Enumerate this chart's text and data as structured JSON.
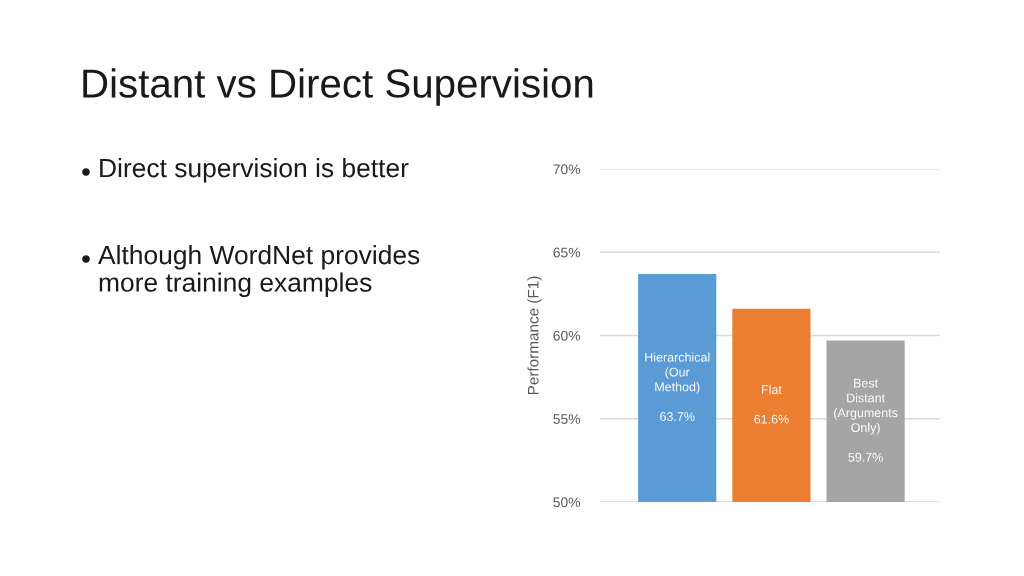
{
  "chart_data": {
    "type": "bar",
    "title": "Distant vs Direct Supervision",
    "ylabel": "Performance (F1)",
    "annotations": [
      "Direct supervision is better",
      "Although WordNet provides more training examples"
    ],
    "categories": [
      "Hierarchical (Our Method)",
      "Flat",
      "Best Distant (Arguments Only)"
    ],
    "values": [
      63.7,
      61.6,
      59.7
    ],
    "colors": [
      "#5b9bd5",
      "#ed7d31",
      "#a5a5a5"
    ],
    "value_labels": [
      "63.7%",
      "61.6%",
      "59.7%"
    ],
    "ylim": [
      50,
      70
    ],
    "yticks": [
      {
        "value": 50,
        "label": "50%"
      },
      {
        "value": 55,
        "label": "55%"
      },
      {
        "value": 60,
        "label": "60%"
      },
      {
        "value": 65,
        "label": "65%"
      },
      {
        "value": 70,
        "label": "70%"
      }
    ],
    "grid": "y",
    "tick_labels": "y"
  }
}
